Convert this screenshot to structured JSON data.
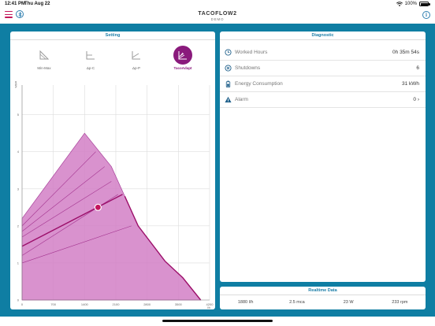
{
  "status": {
    "time": "12:41 PM",
    "date": "Thu Aug 22",
    "battery": "100%"
  },
  "header": {
    "title": "TACOFLOW2",
    "subtitle": "DEMO",
    "bt_icon": "bluetooth-icon",
    "info_label": "i"
  },
  "setting": {
    "title": "Setting",
    "modes": [
      {
        "label": "Min-Max",
        "icon": "min-max-icon",
        "active": false
      },
      {
        "label": "Δp-C",
        "icon": "dp-c-icon",
        "active": false
      },
      {
        "label": "Δp-P",
        "icon": "dp-p-icon",
        "active": false
      },
      {
        "label": "TacoAdapt",
        "icon": "tacoadapt-icon",
        "active": true
      }
    ]
  },
  "chart_data": {
    "type": "area",
    "ylabel": "mWs",
    "xlabel": "l/h",
    "x_ticks": [
      "0",
      "700",
      "1400",
      "2100",
      "2800",
      "3500",
      "4200"
    ],
    "y_ticks": [
      "0",
      "1",
      "2",
      "3",
      "4",
      "5"
    ],
    "xlim": [
      0,
      4200
    ],
    "ylim": [
      0,
      5.8
    ],
    "envelope": {
      "x": [
        0,
        1400,
        2000,
        2600,
        3200,
        3600,
        4000
      ],
      "y": [
        2.2,
        4.5,
        3.6,
        2.0,
        1.05,
        0.6,
        0.0
      ]
    },
    "upper_max_curve": {
      "x": [
        2300,
        2600,
        3200,
        3600,
        4000
      ],
      "y": [
        2.8,
        2.0,
        1.05,
        0.6,
        0.0
      ]
    },
    "guide_lines": [
      {
        "x": [
          0,
          1650
        ],
        "y": [
          2.0,
          4.0
        ]
      },
      {
        "x": [
          0,
          1850
        ],
        "y": [
          1.85,
          3.6
        ]
      },
      {
        "x": [
          0,
          2000
        ],
        "y": [
          1.7,
          3.2
        ]
      },
      {
        "x": [
          0,
          2150
        ],
        "y": [
          1.2,
          2.85
        ]
      },
      {
        "x": [
          0,
          2450
        ],
        "y": [
          1.0,
          2.0
        ]
      }
    ],
    "active_line": {
      "x": [
        0,
        2250
      ],
      "y": [
        1.45,
        2.85
      ]
    },
    "operating_point": {
      "x": 1700,
      "y": 2.5
    }
  },
  "diagnostic": {
    "title": "Diagnostic",
    "rows": [
      {
        "label": "Worked Hours",
        "value": "0h 35m 54s",
        "icon": "clock-icon"
      },
      {
        "label": "Shutdowns",
        "value": "6",
        "icon": "power-icon"
      },
      {
        "label": "Energy Consumption",
        "value": "31 kWh",
        "icon": "battery-icon"
      },
      {
        "label": "Alarm",
        "value": "0 ›",
        "icon": "warning-icon"
      }
    ]
  },
  "realtime": {
    "title": "Realtime Data",
    "values": [
      "1880 l/h",
      "2.5 mca",
      "23 W",
      "233 rpm"
    ]
  },
  "colors": {
    "teal": "#0f7ea3",
    "accent": "#8a1a7c",
    "fill": "#d27fc6",
    "header_text": "#1e7fa8"
  }
}
